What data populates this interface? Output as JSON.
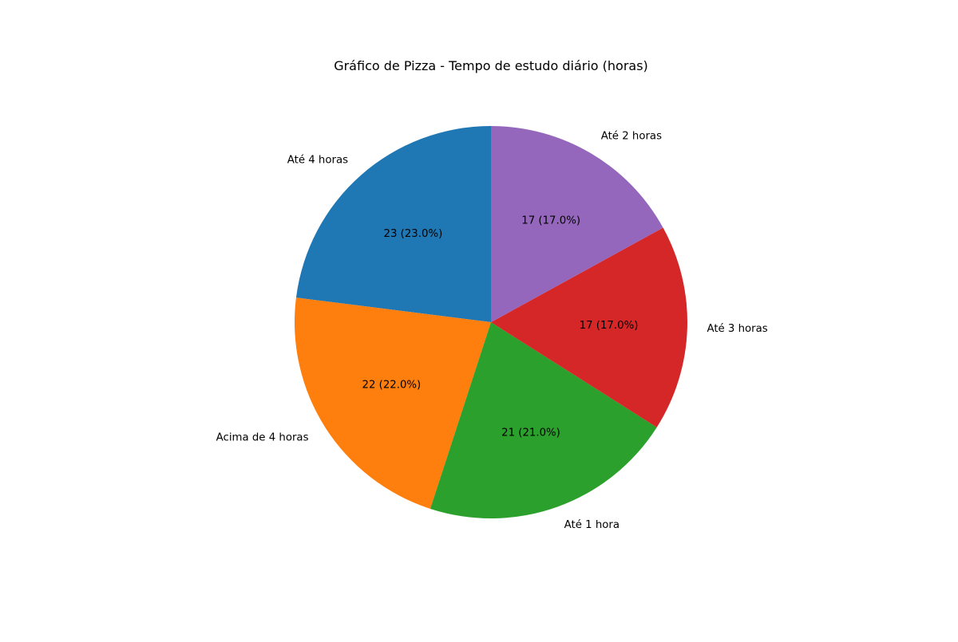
{
  "chart_data": {
    "type": "pie",
    "title": "Gráfico de Pizza - Tempo de estudo diário (horas)",
    "categories": [
      "Até 4 horas",
      "Acima de 4 horas",
      "Até 1 hora",
      "Até 3 horas",
      "Até 2 horas"
    ],
    "values": [
      23,
      22,
      21,
      17,
      17
    ],
    "value_labels": [
      "23 (23.0%)",
      "22 (22.0%)",
      "21 (21.0%)",
      "17 (17.0%)",
      "17 (17.0%)"
    ],
    "colors": [
      "#1f77b4",
      "#ff7f0e",
      "#2ca02c",
      "#d62728",
      "#9467bd"
    ],
    "start_angle_deg": 90,
    "direction": "counterclockwise",
    "legend": "none"
  }
}
